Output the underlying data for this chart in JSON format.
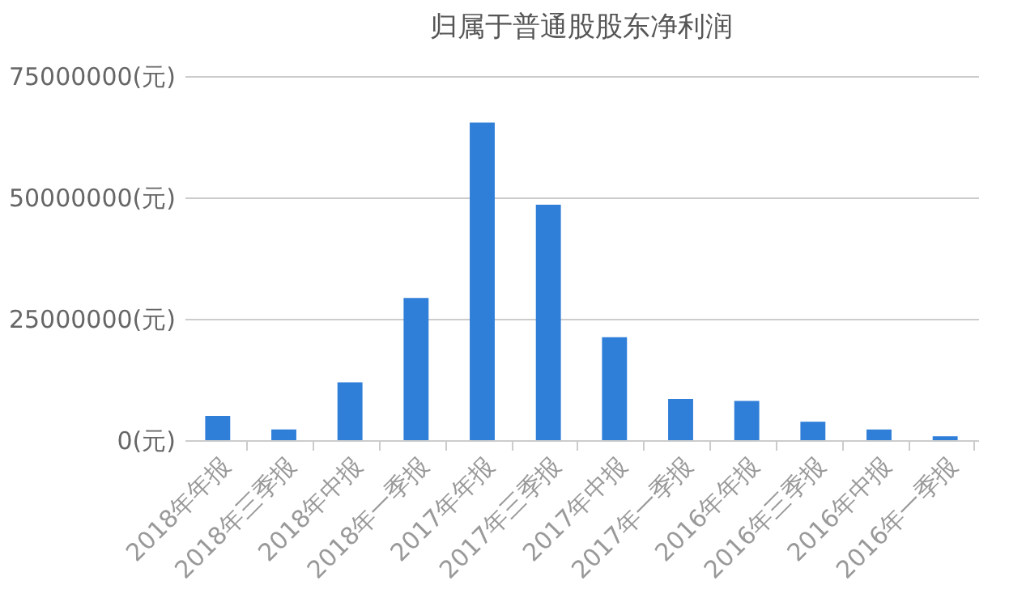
{
  "chart_data": {
    "type": "bar",
    "title": "归属于普通股股东净利润",
    "categories": [
      "2018年年报",
      "2018年三季报",
      "2018年中报",
      "2018年一季报",
      "2017年年报",
      "2017年三季报",
      "2017年中报",
      "2017年一季报",
      "2016年年报",
      "2016年三季报",
      "2016年中报",
      "2016年一季报"
    ],
    "values": [
      5000000,
      2200000,
      11900000,
      29300000,
      65400000,
      48500000,
      21200000,
      8500000,
      8100000,
      3800000,
      2200000,
      800000
    ],
    "color": "#2f7ed8",
    "ylim": [
      0,
      75000000
    ],
    "yticks": [
      {
        "value": 0,
        "label": "0(元)"
      },
      {
        "value": 25000000,
        "label": "25000000(元)"
      },
      {
        "value": 50000000,
        "label": "50000000(元)"
      },
      {
        "value": 75000000,
        "label": "75000000(元)"
      }
    ],
    "grid": "y"
  }
}
